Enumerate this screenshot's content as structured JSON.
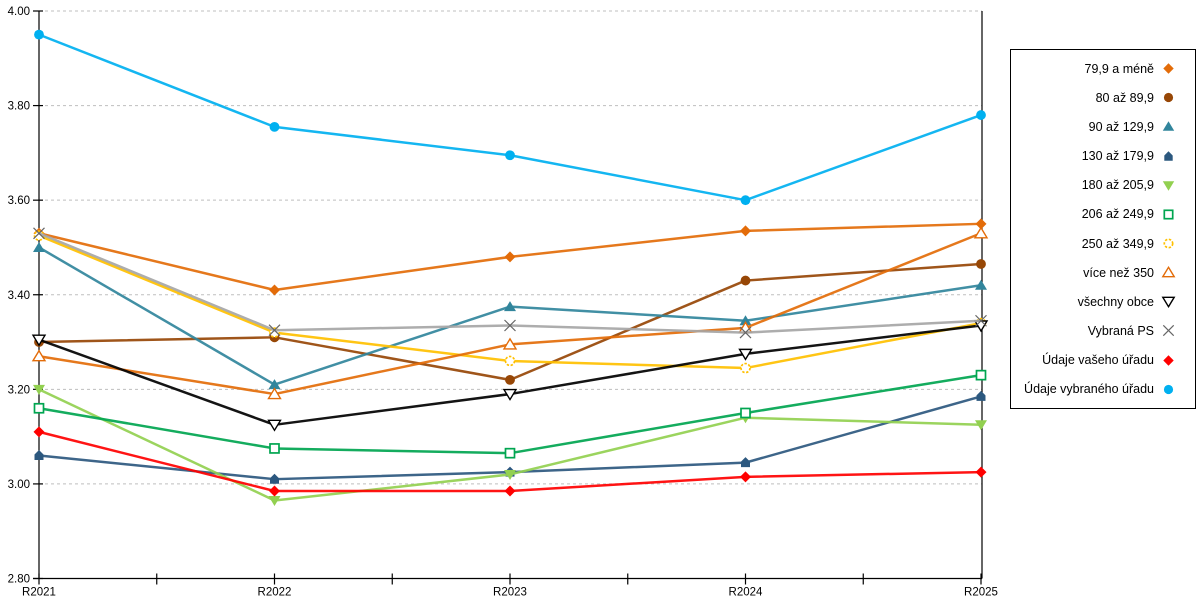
{
  "chart_data": {
    "type": "line",
    "title": "",
    "xlabel": "",
    "ylabel": "",
    "categories": [
      "R2021",
      "R2022",
      "R2023",
      "R2024",
      "R2025"
    ],
    "y_axis": {
      "min": 2.8,
      "max": 4.0,
      "step": 0.2,
      "tick_labels": [
        "4.00",
        "3.80",
        "3.60",
        "3.40",
        "3.20",
        "3.00",
        "2.80"
      ],
      "grid": "dashed-horizontal"
    },
    "legend_position": "right",
    "grid_color": "#BFBFBF",
    "axis_color": "#000000",
    "series": [
      {
        "name": "79,9 a méně",
        "marker": "diamond-filled",
        "color": "#E36C09",
        "values": [
          3.53,
          3.41,
          3.48,
          3.535,
          3.55
        ]
      },
      {
        "name": "80 až 89,9",
        "marker": "circle-filled",
        "color": "#974706",
        "values": [
          3.3,
          3.31,
          3.22,
          3.43,
          3.465
        ]
      },
      {
        "name": "90 až 129,9",
        "marker": "triangle-up-filled",
        "color": "#31859C",
        "values": [
          3.5,
          3.21,
          3.375,
          3.345,
          3.42
        ]
      },
      {
        "name": "130 až 179,9",
        "marker": "pentagon-filled",
        "color": "#2C587F",
        "values": [
          3.06,
          3.01,
          3.025,
          3.045,
          3.185
        ]
      },
      {
        "name": "180 až 205,9",
        "marker": "triangle-down-filled",
        "color": "#92D050",
        "values": [
          3.2,
          2.965,
          3.02,
          3.14,
          3.125
        ]
      },
      {
        "name": "206 až 249,9",
        "marker": "square-open",
        "color": "#00A550",
        "values": [
          3.16,
          3.075,
          3.065,
          3.15,
          3.23
        ]
      },
      {
        "name": "250 až 349,9",
        "marker": "circle-open-dashed",
        "color": "#FFC000",
        "values": [
          3.525,
          3.32,
          3.26,
          3.245,
          3.34
        ]
      },
      {
        "name": "více než 350",
        "marker": "triangle-up-open",
        "color": "#E36C09",
        "values": [
          3.27,
          3.19,
          3.295,
          3.33,
          3.53
        ]
      },
      {
        "name": "všechny obce",
        "marker": "triangle-down-open",
        "color": "#000000",
        "values": [
          3.305,
          3.125,
          3.19,
          3.275,
          3.335
        ]
      },
      {
        "name": "Vybraná PS",
        "marker": "x-cross",
        "color": "#666666",
        "line_color": "#A6A6A6",
        "values": [
          3.53,
          3.325,
          3.335,
          3.32,
          3.345
        ]
      },
      {
        "name": "Údaje vašeho úřadu",
        "marker": "diamond-filled",
        "color": "#FF0000",
        "values": [
          3.11,
          2.985,
          2.985,
          3.015,
          3.025
        ]
      },
      {
        "name": "Údaje vybraného úřadu",
        "marker": "circle-filled",
        "color": "#00B0F0",
        "values": [
          3.95,
          3.755,
          3.695,
          3.6,
          3.78
        ]
      }
    ]
  }
}
